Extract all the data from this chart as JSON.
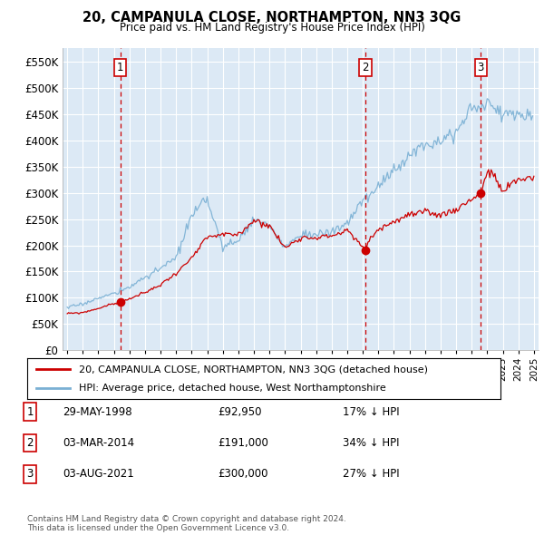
{
  "title": "20, CAMPANULA CLOSE, NORTHAMPTON, NN3 3QG",
  "subtitle": "Price paid vs. HM Land Registry's House Price Index (HPI)",
  "background_color": "#ffffff",
  "plot_bg_color": "#dce9f5",
  "grid_color": "#ffffff",
  "ylim": [
    0,
    575000
  ],
  "yticks": [
    0,
    50000,
    100000,
    150000,
    200000,
    250000,
    300000,
    350000,
    400000,
    450000,
    500000,
    550000
  ],
  "xlim_start": 1994.7,
  "xlim_end": 2025.3,
  "sale_color": "#cc0000",
  "hpi_color": "#7ab0d4",
  "legend_sale": "20, CAMPANULA CLOSE, NORTHAMPTON, NN3 3QG (detached house)",
  "legend_hpi": "HPI: Average price, detached house, West Northamptonshire",
  "footnote": "Contains HM Land Registry data © Crown copyright and database right 2024.\nThis data is licensed under the Open Government Licence v3.0.",
  "transactions": [
    {
      "num": 1,
      "date": "29-MAY-1998",
      "price": 92950,
      "pct": "17% ↓ HPI",
      "year": 1998.41
    },
    {
      "num": 2,
      "date": "03-MAR-2014",
      "price": 191000,
      "pct": "34% ↓ HPI",
      "year": 2014.17
    },
    {
      "num": 3,
      "date": "03-AUG-2021",
      "price": 300000,
      "pct": "27% ↓ HPI",
      "year": 2021.58
    }
  ]
}
